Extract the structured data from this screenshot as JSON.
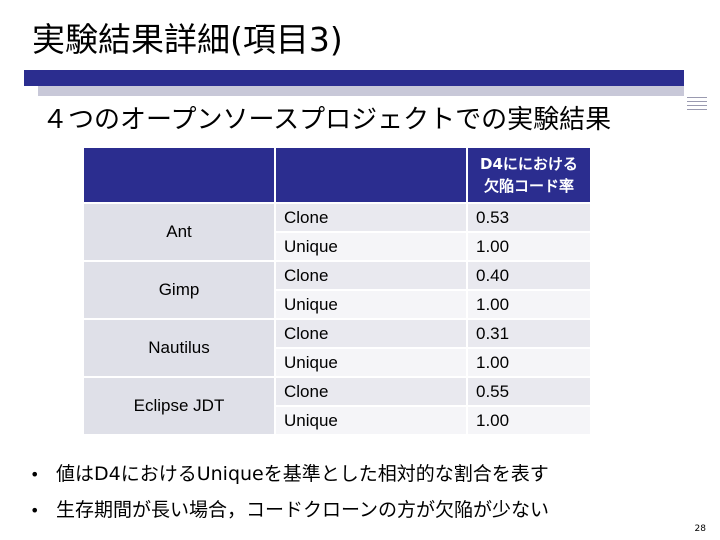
{
  "slide": {
    "title": "実験結果詳細(項目3)",
    "subtitle": "４つのオープンソースプロジェクトでの実験結果",
    "page_number": "28",
    "colors": {
      "accent": "#2b2d8f",
      "header_text": "#ffffff",
      "row_a": "#e9e9ef",
      "row_b": "#f5f5f8",
      "project_cell": "#dfe0e8"
    }
  },
  "table": {
    "header": {
      "col1": "",
      "col2": "",
      "col3_line1": "D4ににおける",
      "col3_line2": "欠陥コード率"
    },
    "projects": [
      {
        "name": "Ant",
        "rows": [
          {
            "type": "Clone",
            "rate": "0.53"
          },
          {
            "type": "Unique",
            "rate": "1.00"
          }
        ]
      },
      {
        "name": "Gimp",
        "rows": [
          {
            "type": "Clone",
            "rate": "0.40"
          },
          {
            "type": "Unique",
            "rate": "1.00"
          }
        ]
      },
      {
        "name": "Nautilus",
        "rows": [
          {
            "type": "Clone",
            "rate": "0.31"
          },
          {
            "type": "Unique",
            "rate": "1.00"
          }
        ]
      },
      {
        "name": "Eclipse JDT",
        "rows": [
          {
            "type": "Clone",
            "rate": "0.55"
          },
          {
            "type": "Unique",
            "rate": "1.00"
          }
        ]
      }
    ]
  },
  "bullets": [
    "値はD4におけるUniqueを基準とした相対的な割合を表す",
    "生存期間が長い場合，コードクローンの方が欠陥が少ない"
  ],
  "bullet_marker": "•"
}
